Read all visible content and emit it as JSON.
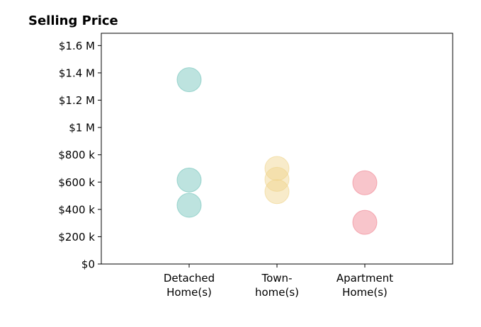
{
  "chart_data": {
    "type": "scatter",
    "title": "Selling Price",
    "xlabel": "",
    "ylabel": "",
    "categories": [
      [
        "Detached",
        "Home(s)"
      ],
      [
        "Town-",
        "home(s)"
      ],
      [
        "Apartment",
        "Home(s)"
      ]
    ],
    "y_ticks": [
      0,
      200000,
      400000,
      600000,
      800000,
      1000000,
      1200000,
      1400000,
      1600000
    ],
    "y_tick_labels": [
      "$0",
      "$200 k",
      "$400 k",
      "$600 k",
      "$800 k",
      "$1 M",
      "$1.2 M",
      "$1.4 M",
      "$1.6 M"
    ],
    "ylim": [
      0,
      1690000
    ],
    "xlim": [
      0,
      4
    ],
    "grid": false,
    "marker_opacity": 0.45,
    "series": [
      {
        "category_index": 0,
        "color": "#6cc2b7",
        "values": [
          1350000,
          615000,
          430000
        ]
      },
      {
        "category_index": 1,
        "color": "#efd38a",
        "values": [
          700000,
          620000,
          530000
        ]
      },
      {
        "category_index": 2,
        "color": "#ef7f8c",
        "values": [
          595000,
          305000
        ]
      }
    ]
  }
}
